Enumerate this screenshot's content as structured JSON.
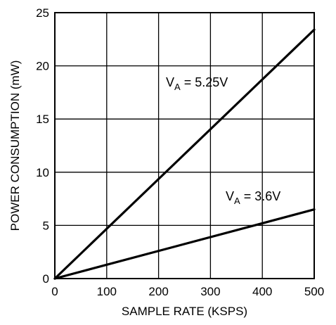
{
  "chart_data": {
    "type": "line",
    "title": "",
    "xlabel": "SAMPLE RATE (KSPS)",
    "ylabel": "POWER CONSUMPTION (mW)",
    "xlim": [
      0,
      500
    ],
    "ylim": [
      0,
      25
    ],
    "xticks": [
      "0",
      "100",
      "200",
      "300",
      "400",
      "500"
    ],
    "yticks": [
      "0",
      "5",
      "10",
      "15",
      "20",
      "25"
    ],
    "grid": true,
    "line_color": "#000000",
    "series": [
      {
        "label_main": "V",
        "label_sub": "A",
        "label_rest": " = 5.25V",
        "x": [
          0,
          500
        ],
        "y": [
          0,
          23.4
        ]
      },
      {
        "label_main": "V",
        "label_sub": "A",
        "label_rest": " = 3.6V",
        "x": [
          0,
          500
        ],
        "y": [
          0,
          6.5
        ]
      }
    ]
  }
}
